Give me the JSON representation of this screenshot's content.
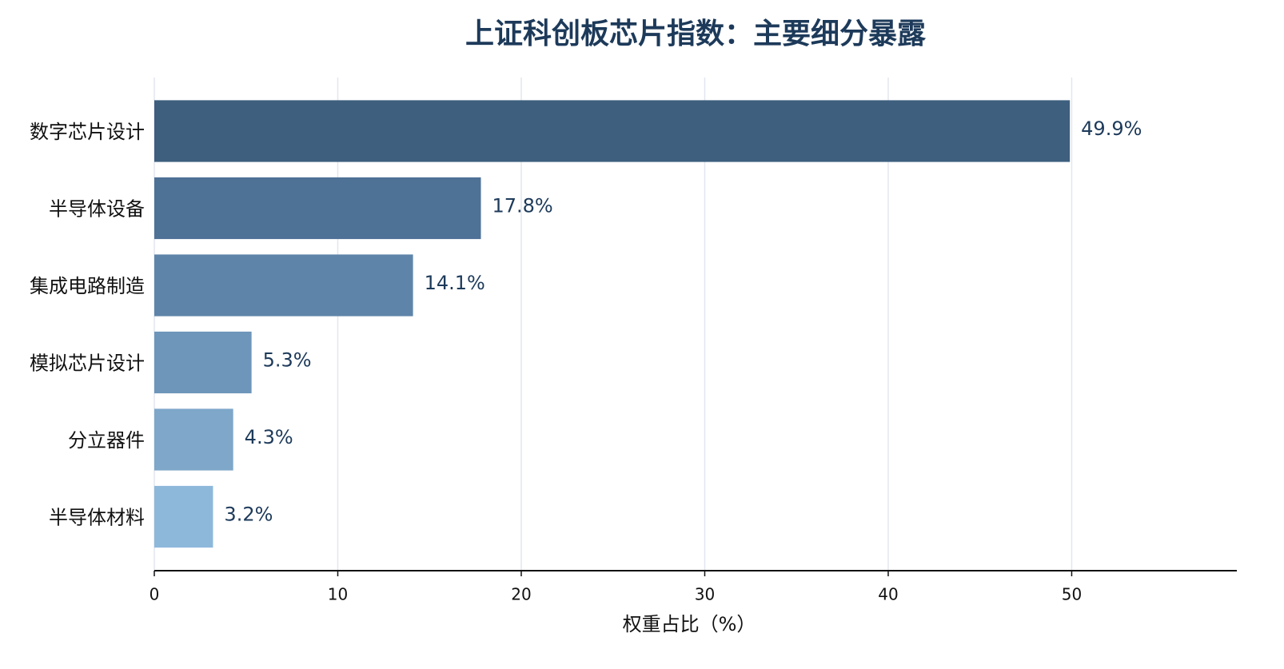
{
  "chart_data": {
    "type": "barh",
    "title": "上证科创板芯片指数：主要细分暴露",
    "xlabel": "权重占比（%）",
    "categories": [
      "数字芯片设计",
      "半导体设备",
      "集成电路制造",
      "模拟芯片设计",
      "分立器件",
      "半导体材料"
    ],
    "values": [
      49.9,
      17.8,
      14.1,
      5.3,
      4.3,
      3.2
    ],
    "value_labels": [
      "49.9%",
      "17.8%",
      "14.1%",
      "5.3%",
      "4.3%",
      "3.2%"
    ],
    "colors": [
      "#3e5f7e",
      "#4e7196",
      "#5e84a9",
      "#6e95ba",
      "#7ea7c9",
      "#8db8da"
    ],
    "xlim": [
      0,
      59
    ],
    "xticks": [
      0,
      10,
      20,
      30,
      40,
      50
    ],
    "grid": true
  }
}
